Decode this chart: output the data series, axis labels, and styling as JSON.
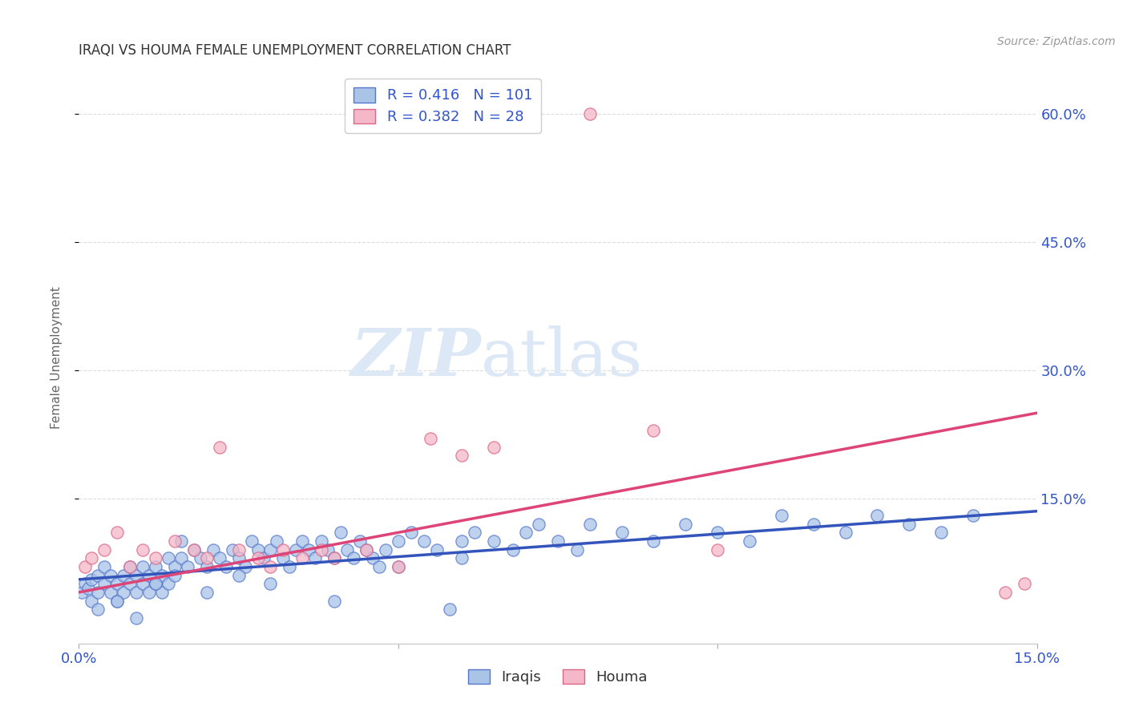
{
  "title": "IRAQI VS HOUMA FEMALE UNEMPLOYMENT CORRELATION CHART",
  "source": "Source: ZipAtlas.com",
  "ylabel": "Female Unemployment",
  "watermark_zip": "ZIP",
  "watermark_atlas": "atlas",
  "xlim": [
    0.0,
    0.15
  ],
  "ylim": [
    -0.02,
    0.65
  ],
  "xticks": [
    0.0,
    0.05,
    0.1,
    0.15
  ],
  "yticks": [
    0.15,
    0.3,
    0.45,
    0.6
  ],
  "ytick_labels": [
    "15.0%",
    "30.0%",
    "45.0%",
    "60.0%"
  ],
  "xtick_labels": [
    "0.0%",
    "",
    "",
    "15.0%"
  ],
  "background_color": "#ffffff",
  "grid_color": "#dddddd",
  "iraqi_color": "#aac4e8",
  "iraqi_edge_color": "#5577cc",
  "iraqi_line_color": "#3355bb",
  "houma_color": "#f4b8c8",
  "houma_edge_color": "#dd6688",
  "houma_line_color": "#dd4477",
  "text_color": "#3355cc",
  "title_color": "#333333",
  "source_color": "#999999",
  "ylabel_color": "#666666",
  "iraqi_R": 0.416,
  "iraqi_N": 101,
  "houma_R": 0.382,
  "houma_N": 28,
  "iraqi_scatter_x": [
    0.0005,
    0.001,
    0.0015,
    0.002,
    0.002,
    0.003,
    0.003,
    0.004,
    0.004,
    0.005,
    0.005,
    0.006,
    0.006,
    0.007,
    0.007,
    0.008,
    0.008,
    0.009,
    0.009,
    0.01,
    0.01,
    0.011,
    0.011,
    0.012,
    0.012,
    0.013,
    0.013,
    0.014,
    0.014,
    0.015,
    0.015,
    0.016,
    0.017,
    0.018,
    0.019,
    0.02,
    0.021,
    0.022,
    0.023,
    0.024,
    0.025,
    0.026,
    0.027,
    0.028,
    0.029,
    0.03,
    0.031,
    0.032,
    0.033,
    0.034,
    0.035,
    0.036,
    0.037,
    0.038,
    0.039,
    0.04,
    0.041,
    0.042,
    0.043,
    0.044,
    0.045,
    0.046,
    0.047,
    0.048,
    0.05,
    0.052,
    0.054,
    0.056,
    0.058,
    0.06,
    0.062,
    0.065,
    0.068,
    0.07,
    0.072,
    0.075,
    0.078,
    0.08,
    0.085,
    0.09,
    0.095,
    0.1,
    0.105,
    0.11,
    0.115,
    0.12,
    0.125,
    0.13,
    0.135,
    0.14,
    0.003,
    0.006,
    0.009,
    0.012,
    0.016,
    0.02,
    0.025,
    0.03,
    0.04,
    0.05,
    0.06
  ],
  "iraqi_scatter_y": [
    0.04,
    0.05,
    0.045,
    0.055,
    0.03,
    0.06,
    0.04,
    0.07,
    0.05,
    0.04,
    0.06,
    0.05,
    0.03,
    0.06,
    0.04,
    0.07,
    0.05,
    0.06,
    0.04,
    0.07,
    0.05,
    0.06,
    0.04,
    0.05,
    0.07,
    0.06,
    0.04,
    0.08,
    0.05,
    0.07,
    0.06,
    0.08,
    0.07,
    0.09,
    0.08,
    0.07,
    0.09,
    0.08,
    0.07,
    0.09,
    0.08,
    0.07,
    0.1,
    0.09,
    0.08,
    0.09,
    0.1,
    0.08,
    0.07,
    0.09,
    0.1,
    0.09,
    0.08,
    0.1,
    0.09,
    0.08,
    0.11,
    0.09,
    0.08,
    0.1,
    0.09,
    0.08,
    0.07,
    0.09,
    0.1,
    0.11,
    0.1,
    0.09,
    0.02,
    0.1,
    0.11,
    0.1,
    0.09,
    0.11,
    0.12,
    0.1,
    0.09,
    0.12,
    0.11,
    0.1,
    0.12,
    0.11,
    0.1,
    0.13,
    0.12,
    0.11,
    0.13,
    0.12,
    0.11,
    0.13,
    0.02,
    0.03,
    0.01,
    0.05,
    0.1,
    0.04,
    0.06,
    0.05,
    0.03,
    0.07,
    0.08
  ],
  "houma_scatter_x": [
    0.001,
    0.002,
    0.004,
    0.006,
    0.008,
    0.01,
    0.012,
    0.015,
    0.018,
    0.02,
    0.022,
    0.025,
    0.028,
    0.03,
    0.032,
    0.035,
    0.038,
    0.04,
    0.045,
    0.05,
    0.055,
    0.06,
    0.065,
    0.08,
    0.09,
    0.1,
    0.145,
    0.148
  ],
  "houma_scatter_y": [
    0.07,
    0.08,
    0.09,
    0.11,
    0.07,
    0.09,
    0.08,
    0.1,
    0.09,
    0.08,
    0.21,
    0.09,
    0.08,
    0.07,
    0.09,
    0.08,
    0.09,
    0.08,
    0.09,
    0.07,
    0.22,
    0.2,
    0.21,
    0.6,
    0.23,
    0.09,
    0.04,
    0.05
  ],
  "iraqi_trend_x": [
    0.0,
    0.15
  ],
  "iraqi_trend_y": [
    0.055,
    0.135
  ],
  "houma_trend_x": [
    0.0,
    0.15
  ],
  "houma_trend_y": [
    0.04,
    0.25
  ]
}
